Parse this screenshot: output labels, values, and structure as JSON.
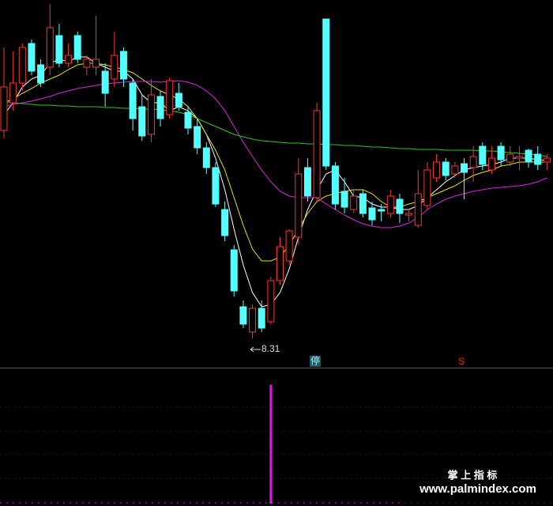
{
  "chart_data": [
    {
      "type": "candlestick",
      "up_color": "#ff3232",
      "down_color": "#54ffff",
      "ylim": [
        7.94,
        12.59
      ],
      "open": [
        10.94,
        11.29,
        11.54,
        12.04,
        11.77,
        11.74,
        12.14,
        11.79,
        12.14,
        11.74,
        11.74,
        11.69,
        11.59,
        11.94,
        11.54,
        11.24,
        10.89,
        11.37,
        11.14,
        11.41,
        11.17,
        10.99,
        10.72,
        10.47,
        9.94,
        9.43,
        8.71,
        8.39,
        8.69,
        8.52,
        9.04,
        9.29,
        9.59,
        10.47,
        10.09,
        12.35,
        10.49,
        10.17,
        9.94,
        10.14,
        9.96,
        9.94,
        9.89,
        10.07,
        9.87,
        9.74,
        9.99,
        10.34,
        10.54,
        10.39,
        10.52,
        10.47,
        10.74,
        10.44,
        10.74,
        10.54,
        10.59,
        10.69,
        10.64,
        10.54
      ],
      "high": [
        11.99,
        11.94,
        12.04,
        12.09,
        11.84,
        12.54,
        12.29,
        12.04,
        12.19,
        11.89,
        12.39,
        11.79,
        12.19,
        11.99,
        11.59,
        11.39,
        11.59,
        11.44,
        11.61,
        11.54,
        11.24,
        11.09,
        10.79,
        10.54,
        10.04,
        9.49,
        8.79,
        8.74,
        8.79,
        9.09,
        9.59,
        9.69,
        10.59,
        10.59,
        11.29,
        12.35,
        10.54,
        10.34,
        10.19,
        10.19,
        10.04,
        10.01,
        10.19,
        10.14,
        9.94,
        10.44,
        10.54,
        10.64,
        10.59,
        10.54,
        10.59,
        10.74,
        10.79,
        10.74,
        10.79,
        10.74,
        10.74,
        10.71,
        10.74,
        10.64
      ],
      "low": [
        10.84,
        11.19,
        11.44,
        11.64,
        11.49,
        11.64,
        11.74,
        11.74,
        11.79,
        11.64,
        11.64,
        11.24,
        11.49,
        11.49,
        10.94,
        10.81,
        10.79,
        10.99,
        11.09,
        11.19,
        10.89,
        10.64,
        10.39,
        9.97,
        9.54,
        8.84,
        8.44,
        8.31,
        8.39,
        8.49,
        8.99,
        9.24,
        9.49,
        10.04,
        10.04,
        10.44,
        9.94,
        9.89,
        9.89,
        9.84,
        9.74,
        9.79,
        9.84,
        9.77,
        9.79,
        9.71,
        9.94,
        10.29,
        10.31,
        10.34,
        10.07,
        10.29,
        10.44,
        10.39,
        10.49,
        10.49,
        10.44,
        10.47,
        10.44,
        10.44
      ],
      "close": [
        11.49,
        11.54,
        11.99,
        11.69,
        11.54,
        12.24,
        11.79,
        11.89,
        11.84,
        11.84,
        11.84,
        11.41,
        11.89,
        11.59,
        11.09,
        10.87,
        11.39,
        11.09,
        11.57,
        11.24,
        10.97,
        10.72,
        10.47,
        10.01,
        9.61,
        8.91,
        8.49,
        8.69,
        8.44,
        9.04,
        9.47,
        9.67,
        10.39,
        10.11,
        11.19,
        10.49,
        10.01,
        9.97,
        10.11,
        9.89,
        9.81,
        9.92,
        10.11,
        9.89,
        9.89,
        10.14,
        10.44,
        10.54,
        10.37,
        10.49,
        10.41,
        10.61,
        10.51,
        10.59,
        10.57,
        10.64,
        10.61,
        10.54,
        10.51,
        10.59
      ],
      "lines": [
        {
          "color": "#ffffff",
          "values": [
            11.14,
            11.29,
            11.49,
            11.59,
            11.64,
            11.79,
            11.84,
            11.81,
            11.87,
            11.87,
            11.79,
            11.74,
            11.69,
            11.69,
            11.59,
            11.39,
            11.29,
            11.29,
            11.19,
            11.24,
            11.19,
            11.09,
            10.89,
            10.59,
            10.19,
            9.69,
            9.24,
            8.89,
            8.71,
            8.74,
            8.89,
            9.19,
            9.59,
            9.94,
            10.19,
            10.39,
            10.44,
            10.29,
            10.11,
            10.09,
            10.01,
            9.97,
            9.97,
            9.94,
            9.94,
            9.99,
            10.09,
            10.19,
            10.29,
            10.37,
            10.44,
            10.47,
            10.49,
            10.51,
            10.54,
            10.59,
            10.59,
            10.59,
            10.57,
            10.56
          ]
        },
        {
          "color": "#e6e600",
          "values": [
            11.29,
            11.34,
            11.41,
            11.47,
            11.54,
            11.59,
            11.64,
            11.71,
            11.77,
            11.79,
            11.79,
            11.77,
            11.74,
            11.71,
            11.67,
            11.59,
            11.51,
            11.44,
            11.39,
            11.34,
            11.24,
            11.09,
            10.89,
            10.69,
            10.44,
            10.09,
            9.74,
            9.44,
            9.29,
            9.29,
            9.34,
            9.49,
            9.69,
            9.89,
            10.04,
            10.11,
            10.14,
            10.17,
            10.19,
            10.19,
            10.14,
            10.04,
            9.97,
            9.97,
            10.01,
            10.04,
            10.09,
            10.14,
            10.19,
            10.24,
            10.31,
            10.37,
            10.41,
            10.44,
            10.49,
            10.51,
            10.54,
            10.54,
            10.54,
            10.54
          ]
        },
        {
          "color": "#e020e0",
          "values": [
            11.24,
            11.27,
            11.29,
            11.31,
            11.34,
            11.37,
            11.41,
            11.44,
            11.47,
            11.49,
            11.51,
            11.53,
            11.54,
            11.55,
            11.56,
            11.56,
            11.56,
            11.55,
            11.56,
            11.57,
            11.55,
            11.51,
            11.44,
            11.34,
            11.19,
            10.99,
            10.79,
            10.61,
            10.44,
            10.29,
            10.17,
            10.11,
            10.09,
            10.09,
            10.09,
            10.01,
            9.94,
            9.87,
            9.81,
            9.76,
            9.73,
            9.71,
            9.71,
            9.73,
            9.77,
            9.84,
            9.94,
            10.01,
            10.07,
            10.11,
            10.14,
            10.17,
            10.19,
            10.21,
            10.22,
            10.23,
            10.24,
            10.26,
            10.29,
            10.34
          ]
        },
        {
          "color": "#22cc22",
          "values": [
            11.31,
            11.29,
            11.28,
            11.27,
            11.26,
            11.26,
            11.25,
            11.25,
            11.24,
            11.24,
            11.24,
            11.23,
            11.23,
            11.22,
            11.22,
            11.21,
            11.21,
            11.2,
            11.19,
            11.17,
            11.14,
            11.09,
            11.04,
            10.99,
            10.94,
            10.89,
            10.86,
            10.83,
            10.81,
            10.8,
            10.79,
            10.78,
            10.78,
            10.77,
            10.77,
            10.76,
            10.76,
            10.75,
            10.75,
            10.74,
            10.73,
            10.73,
            10.72,
            10.71,
            10.71,
            10.7,
            10.7,
            10.7,
            10.69,
            10.69,
            10.69,
            10.69,
            10.68,
            10.68,
            10.67,
            10.66,
            10.65,
            10.64,
            10.63,
            10.61
          ]
        }
      ],
      "low_label": "8.31",
      "markers": [
        "停",
        "S"
      ]
    },
    {
      "type": "bar",
      "color": "#ff00ff",
      "ylim": [
        0,
        1.13
      ],
      "values": [
        0,
        0,
        0,
        0,
        0,
        0,
        0,
        0,
        0,
        0,
        0,
        0,
        0,
        0,
        0,
        0,
        0,
        0,
        0,
        0,
        0,
        0,
        0,
        0,
        0,
        0,
        0,
        0,
        0,
        1,
        0,
        0,
        0,
        0,
        0,
        0,
        0,
        0,
        0,
        0,
        0,
        0,
        0,
        0,
        0,
        0,
        0,
        0,
        0,
        0,
        0,
        0,
        0,
        0,
        0,
        0,
        0,
        0,
        0,
        0
      ]
    }
  ],
  "watermark": {
    "title": "掌 上 指 标",
    "url": "www.palmindex.com"
  }
}
